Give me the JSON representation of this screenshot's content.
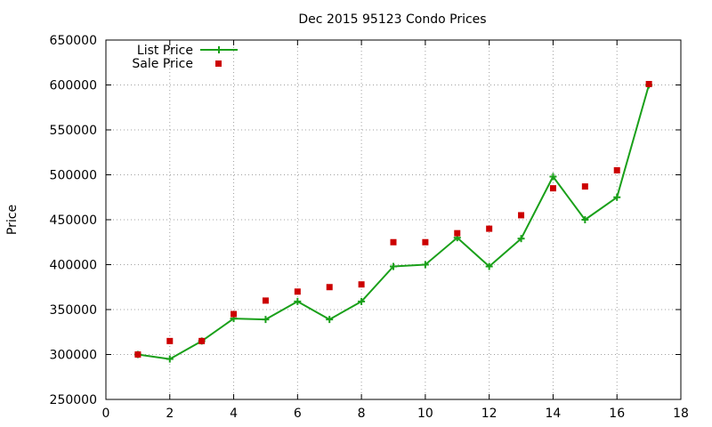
{
  "chart_data": {
    "type": "line",
    "title": "Dec 2015 95123 Condo Prices",
    "xlabel": "",
    "ylabel": "Price",
    "xlim": [
      0,
      18
    ],
    "ylim": [
      250000,
      650000
    ],
    "xticks": [
      "0",
      "2",
      "4",
      "6",
      "8",
      "10",
      "12",
      "14",
      "16",
      "18"
    ],
    "yticks": [
      "250000",
      "300000",
      "350000",
      "400000",
      "450000",
      "500000",
      "550000",
      "600000",
      "650000"
    ],
    "grid": true,
    "legend_position": "top-left",
    "series": [
      {
        "name": "List Price",
        "style": "line-with-plus-markers",
        "color": "#1aa01a",
        "x": [
          1,
          2,
          3,
          4,
          5,
          6,
          7,
          8,
          9,
          10,
          11,
          12,
          13,
          14,
          15,
          16,
          17
        ],
        "values": [
          300000,
          295000,
          315000,
          340000,
          339000,
          359000,
          339000,
          359000,
          398000,
          400000,
          430000,
          398000,
          429000,
          498000,
          450000,
          475000,
          600000
        ]
      },
      {
        "name": "Sale Price",
        "style": "square-markers",
        "color": "#cc0000",
        "x": [
          1,
          2,
          3,
          4,
          5,
          6,
          7,
          8,
          9,
          10,
          11,
          12,
          13,
          14,
          15,
          16,
          17
        ],
        "values": [
          300000,
          315000,
          315000,
          345000,
          360000,
          370000,
          375000,
          378000,
          425000,
          425000,
          435000,
          440000,
          455000,
          485000,
          487000,
          505000,
          601000
        ]
      }
    ]
  }
}
